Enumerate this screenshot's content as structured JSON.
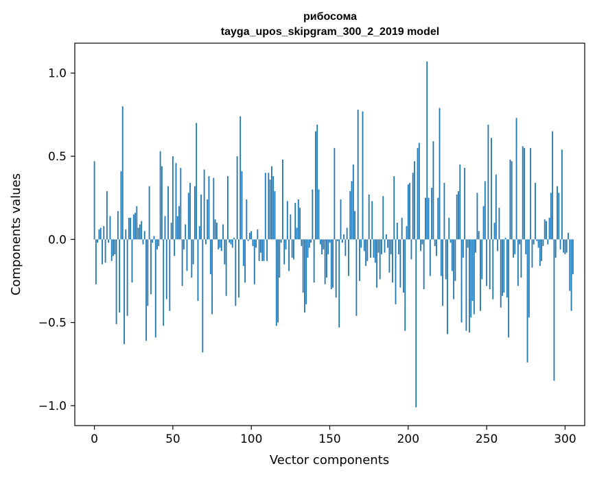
{
  "chart_data": {
    "type": "bar",
    "title": "рибосома",
    "subtitle": "tayga_upos_skipgram_300_2_2019 model",
    "xlabel": "Vector components",
    "ylabel": "Components values",
    "xlim": [
      -12.5,
      312.5
    ],
    "ylim": [
      -1.12,
      1.18
    ],
    "xticks": [
      0,
      50,
      100,
      150,
      200,
      250,
      300
    ],
    "xtick_labels": [
      "0",
      "50",
      "100",
      "150",
      "200",
      "250",
      "300"
    ],
    "yticks": [
      -1.0,
      -0.5,
      0.0,
      0.5,
      1.0
    ],
    "ytick_labels": [
      "−1.0",
      "−0.5",
      "0.0",
      "0.5",
      "1.0"
    ],
    "grid": false,
    "bar_color": "#1f77b4",
    "values": [
      0.47,
      -0.27,
      -0.02,
      0.06,
      0.07,
      -0.15,
      0.08,
      -0.14,
      0.29,
      -0.02,
      0.14,
      -0.13,
      -0.1,
      -0.09,
      -0.51,
      0.17,
      -0.44,
      0.41,
      0.8,
      -0.63,
      0.06,
      -0.46,
      0.13,
      0.13,
      -0.26,
      0.15,
      0.16,
      0.2,
      0.07,
      0.09,
      0.11,
      -0.03,
      0.05,
      -0.61,
      -0.4,
      0.32,
      -0.33,
      -0.02,
      0.02,
      -0.59,
      -0.06,
      -0.04,
      0.53,
      0.44,
      -0.52,
      0.14,
      -0.36,
      0.32,
      -0.43,
      0.1,
      0.5,
      -0.1,
      0.46,
      0.14,
      0.2,
      0.43,
      -0.28,
      -0.06,
      0.09,
      -0.19,
      0.28,
      0.34,
      -0.23,
      -0.15,
      0.32,
      0.7,
      -0.37,
      0.08,
      0.27,
      -0.68,
      0.42,
      -0.03,
      0.24,
      0.38,
      -0.21,
      -0.45,
      0.37,
      0.12,
      0.1,
      -0.06,
      -0.05,
      -0.07,
      0.09,
      -0.15,
      -0.34,
      0.38,
      -0.02,
      -0.03,
      -0.05,
      0.01,
      -0.4,
      0.5,
      -0.35,
      0.74,
      0.41,
      -0.16,
      -0.26,
      0.24,
      -0.01,
      0.04,
      0.05,
      -0.04,
      -0.27,
      -0.05,
      0.06,
      -0.13,
      -0.08,
      -0.13,
      -0.13,
      0.4,
      -0.13,
      0.4,
      0.36,
      0.44,
      0.38,
      0.29,
      -0.52,
      -0.5,
      -0.23,
      -0.02,
      0.48,
      -0.15,
      -0.06,
      0.23,
      -0.19,
      0.15,
      -0.11,
      -0.12,
      0.22,
      0.07,
      0.24,
      0.19,
      -0.04,
      -0.32,
      -0.44,
      -0.39,
      -0.11,
      -0.05,
      -0.02,
      0.3,
      -0.26,
      0.65,
      0.69,
      0.3,
      -0.03,
      -0.09,
      -0.06,
      -0.27,
      -0.23,
      -0.09,
      -0.02,
      -0.3,
      -0.29,
      0.55,
      -0.35,
      -0.01,
      -0.53,
      0.24,
      -0.02,
      0.03,
      -0.1,
      0.07,
      -0.22,
      0.29,
      0.35,
      0.45,
      0.17,
      -0.46,
      0.78,
      -0.25,
      -0.05,
      0.77,
      -0.07,
      -0.16,
      -0.13,
      0.27,
      -0.11,
      0.23,
      -0.11,
      -0.14,
      -0.29,
      -0.08,
      -0.24,
      -0.09,
      0.26,
      -0.08,
      0.03,
      -0.05,
      -0.2,
      -0.09,
      -0.26,
      0.38,
      -0.39,
      0.1,
      -0.09,
      -0.29,
      0.13,
      -0.32,
      -0.55,
      0.08,
      0.33,
      0.34,
      -0.12,
      0.4,
      0.47,
      -1.01,
      0.55,
      0.58,
      -0.07,
      -0.03,
      -0.3,
      0.25,
      1.07,
      0.25,
      -0.22,
      0.31,
      0.59,
      -0.04,
      -0.1,
      0.25,
      0.79,
      -0.22,
      -0.4,
      0.34,
      -0.24,
      -0.57,
      0.13,
      -0.02,
      -0.19,
      -0.36,
      -0.25,
      0.27,
      0.29,
      0.45,
      -0.5,
      -0.11,
      0.43,
      -0.55,
      -0.05,
      -0.56,
      -0.47,
      -0.37,
      -0.45,
      -0.08,
      0.28,
      0.05,
      -0.43,
      -0.24,
      0.2,
      0.35,
      -0.28,
      0.69,
      -0.3,
      0.61,
      -0.36,
      0.1,
      0.39,
      -0.07,
      0.19,
      -0.41,
      -0.34,
      -0.32,
      0.01,
      -0.35,
      -0.59,
      0.48,
      0.47,
      -0.11,
      -0.09,
      0.73,
      -0.28,
      -0.03,
      -0.23,
      0.56,
      0.55,
      -0.09,
      -0.74,
      -0.47,
      0.55,
      -0.17,
      -0.03,
      0.34,
      -0.01,
      -0.05,
      -0.16,
      -0.13,
      -0.04,
      0.12,
      0.11,
      -0.03,
      0.13,
      0.28,
      0.65,
      -0.85,
      -0.11,
      0.32,
      0.28,
      -0.06,
      0.54,
      -0.08,
      -0.09,
      -0.08,
      0.04,
      -0.31,
      -0.43,
      -0.21
    ]
  }
}
